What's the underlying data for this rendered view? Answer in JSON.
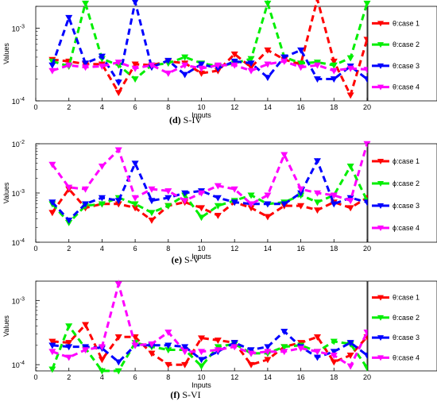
{
  "chart_data": [
    {
      "type": "line",
      "caption_letter": "(d)",
      "caption_text": " S-IV",
      "xlabel": "Inputs",
      "ylabel": "Values",
      "yscale": "log",
      "ylim": [
        0.0001,
        0.002
      ],
      "xlim": [
        0,
        20
      ],
      "xticks": [
        "0",
        "2",
        "4",
        "6",
        "8",
        "10",
        "12",
        "14",
        "16",
        "18",
        "20"
      ],
      "yticks": [
        {
          "value": 0.0001,
          "base": "10",
          "exp": "-4"
        },
        {
          "value": 0.001,
          "base": "10",
          "exp": "-3"
        }
      ],
      "legend_placement": "right",
      "x": [
        1,
        2,
        3,
        4,
        5,
        6,
        7,
        8,
        9,
        10,
        11,
        12,
        13,
        14,
        15,
        16,
        17,
        18,
        19,
        20
      ],
      "series": [
        {
          "name": "θ:case 1",
          "color": "#ff0000",
          "marker": "down-triangle",
          "values": [
            0.00037,
            0.00035,
            0.00032,
            0.00032,
            0.00013,
            0.00032,
            0.00031,
            0.00035,
            0.00033,
            0.00024,
            0.00026,
            0.00044,
            0.00029,
            0.0005,
            0.00037,
            0.00032,
            0.0025,
            0.00035,
            0.00012,
            0.0007
          ]
        },
        {
          "name": "θ:case 2",
          "color": "#00ee00",
          "marker": "down-triangle",
          "values": [
            0.00035,
            0.0003,
            0.0022,
            0.00038,
            0.00031,
            0.0002,
            0.00031,
            0.00033,
            0.0004,
            0.00033,
            0.0003,
            0.00033,
            0.00038,
            0.0022,
            0.0004,
            0.00033,
            0.00034,
            0.00031,
            0.00039,
            0.0022
          ]
        },
        {
          "name": "θ:case 3",
          "color": "#0000ff",
          "marker": "down-triangle",
          "values": [
            0.00031,
            0.0014,
            0.00033,
            0.00041,
            0.00018,
            0.0023,
            0.00029,
            0.00036,
            0.00023,
            0.00032,
            0.00028,
            0.00035,
            0.00033,
            0.00021,
            0.0004,
            0.0005,
            0.0002,
            0.0002,
            0.0003,
            0.0002
          ]
        },
        {
          "name": "θ:case 4",
          "color": "#ff00ff",
          "marker": "down-triangle",
          "values": [
            0.00026,
            0.00031,
            0.00029,
            0.0003,
            0.00034,
            0.00028,
            0.00031,
            0.00024,
            0.00031,
            0.00028,
            0.00031,
            0.00031,
            0.00026,
            0.00032,
            0.00035,
            0.00029,
            0.00031,
            0.00026,
            0.00028,
            0.00027
          ]
        }
      ]
    },
    {
      "type": "line",
      "caption_letter": "(e)",
      "caption_text": " S-V",
      "xlabel": "Inputs",
      "ylabel": "Values",
      "yscale": "log",
      "ylim": [
        0.0001,
        0.01
      ],
      "xlim": [
        0,
        20
      ],
      "xticks": [
        "0",
        "2",
        "4",
        "6",
        "8",
        "10",
        "12",
        "14",
        "16",
        "18",
        "20"
      ],
      "yticks": [
        {
          "value": 0.0001,
          "base": "10",
          "exp": "-4"
        },
        {
          "value": 0.001,
          "base": "10",
          "exp": "-3"
        },
        {
          "value": 0.01,
          "base": "10",
          "exp": "-2"
        }
      ],
      "legend_placement": "right",
      "x": [
        1,
        2,
        3,
        4,
        5,
        6,
        7,
        8,
        9,
        10,
        11,
        12,
        13,
        14,
        15,
        16,
        17,
        18,
        19,
        20
      ],
      "series": [
        {
          "name": "ϕ:case 1",
          "color": "#ff0000",
          "marker": "down-triangle",
          "values": [
            0.0004,
            0.0012,
            0.0005,
            0.0006,
            0.0006,
            0.0005,
            0.00028,
            0.00055,
            0.00065,
            0.0005,
            0.00035,
            0.00065,
            0.0005,
            0.00033,
            0.00055,
            0.00055,
            0.00045,
            0.00065,
            0.0005,
            0.0008
          ]
        },
        {
          "name": "ϕ:case 2",
          "color": "#00ee00",
          "marker": "down-triangle",
          "values": [
            0.0006,
            0.00025,
            0.00055,
            0.0006,
            0.0008,
            0.0006,
            0.0004,
            0.00055,
            0.0009,
            0.00032,
            0.00055,
            0.0007,
            0.0009,
            0.0006,
            0.00065,
            0.0009,
            0.00065,
            0.0009,
            0.0035,
            0.0007
          ]
        },
        {
          "name": "ϕ:case 3",
          "color": "#0000ff",
          "marker": "down-triangle",
          "values": [
            0.00065,
            0.00028,
            0.0006,
            0.0008,
            0.0007,
            0.004,
            0.0007,
            0.0008,
            0.001,
            0.0011,
            0.0008,
            0.00065,
            0.0006,
            0.0006,
            0.0006,
            0.001,
            0.0045,
            0.0006,
            0.0008,
            0.00065
          ]
        },
        {
          "name": "ϕ:case 4",
          "color": "#ff00ff",
          "marker": "down-triangle",
          "values": [
            0.0038,
            0.0013,
            0.0012,
            0.0035,
            0.0075,
            0.0008,
            0.0012,
            0.0011,
            0.0007,
            0.001,
            0.0014,
            0.0012,
            0.0006,
            0.0009,
            0.006,
            0.0012,
            0.001,
            0.0009,
            0.0007,
            0.01
          ]
        }
      ]
    },
    {
      "type": "line",
      "caption_letter": "(f)",
      "caption_text": " S-VI",
      "xlabel": "Inputs",
      "ylabel": "Values",
      "yscale": "log",
      "ylim": [
        8e-05,
        0.002
      ],
      "xlim": [
        0,
        20
      ],
      "xticks": [
        "0",
        "2",
        "4",
        "6",
        "8",
        "10",
        "12",
        "14",
        "16",
        "18",
        "20"
      ],
      "yticks": [
        {
          "value": 0.0001,
          "base": "10",
          "exp": "-4"
        },
        {
          "value": 0.001,
          "base": "10",
          "exp": "-3"
        }
      ],
      "legend_placement": "right",
      "x": [
        1,
        2,
        3,
        4,
        5,
        6,
        7,
        8,
        9,
        10,
        11,
        12,
        13,
        14,
        15,
        16,
        17,
        18,
        19,
        20
      ],
      "series": [
        {
          "name": "θ:case 1",
          "color": "#ff0000",
          "marker": "down-triangle",
          "values": [
            0.00023,
            0.00022,
            0.00042,
            0.00012,
            0.00027,
            0.00027,
            0.00015,
            0.0001,
            0.0001,
            0.00026,
            0.00024,
            0.00022,
            0.0001,
            0.00012,
            0.00019,
            0.00022,
            0.00027,
            0.00011,
            0.00014,
            0.00027
          ]
        },
        {
          "name": "θ:case 2",
          "color": "#00ee00",
          "marker": "down-triangle",
          "values": [
            8.5e-05,
            0.0004,
            0.00018,
            8e-05,
            8e-05,
            0.00022,
            0.00019,
            0.00017,
            0.00017,
            9.5e-05,
            0.00019,
            0.00021,
            0.00015,
            0.00015,
            0.00019,
            0.0002,
            0.00016,
            0.00023,
            0.00021,
            9e-05
          ]
        },
        {
          "name": "θ:case 3",
          "color": "#0000ff",
          "marker": "down-triangle",
          "values": [
            0.0002,
            0.00019,
            0.00019,
            0.00018,
            0.00011,
            0.0002,
            0.0002,
            0.0002,
            0.00019,
            0.00012,
            0.00016,
            0.00022,
            0.00017,
            0.00019,
            0.00033,
            0.00019,
            0.00013,
            0.00016,
            0.00022,
            0.00014
          ]
        },
        {
          "name": "θ:case 4",
          "color": "#ff00ff",
          "marker": "down-triangle",
          "values": [
            0.00016,
            0.00013,
            0.00017,
            0.00019,
            0.0018,
            0.0002,
            0.00021,
            0.00032,
            0.00016,
            0.00016,
            0.00017,
            0.00019,
            0.00015,
            0.00016,
            0.00016,
            0.00018,
            0.00016,
            0.00014,
            9.5e-05,
            0.00032
          ]
        }
      ]
    }
  ]
}
